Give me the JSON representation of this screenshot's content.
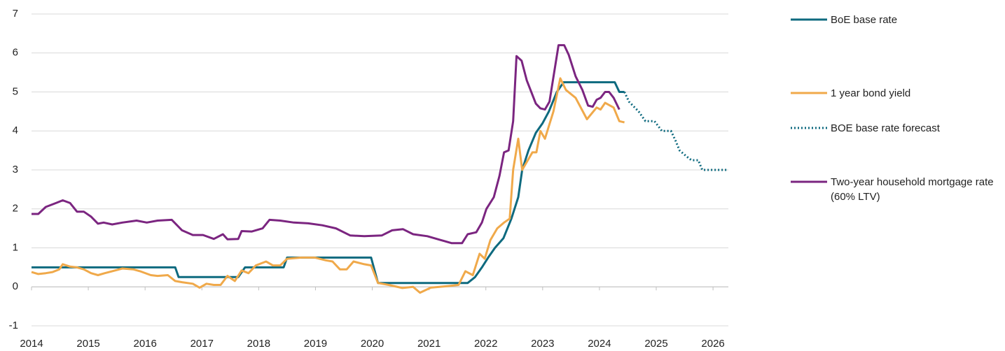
{
  "chart_data": {
    "type": "line",
    "xlim": [
      2014,
      2026.27
    ],
    "xticks": [
      2014,
      2015,
      2016,
      2017,
      2018,
      2019,
      2020,
      2021,
      2022,
      2023,
      2024,
      2025,
      2026
    ],
    "ylim": [
      -1,
      7
    ],
    "yticks": [
      -1,
      0,
      1,
      2,
      3,
      4,
      5,
      6,
      7
    ],
    "grid": true,
    "series": [
      {
        "name": "BoE base rate",
        "color": "#0e6a7f",
        "style": "solid",
        "x": [
          2014.0,
          2016.53,
          2016.59,
          2017.64,
          2017.76,
          2018.44,
          2018.5,
          2019.98,
          2020.1,
          2021.68,
          2021.81,
          2021.93,
          2022.04,
          2022.16,
          2022.31,
          2022.45,
          2022.57,
          2022.64,
          2022.75,
          2022.88,
          2023.0,
          2023.11,
          2023.25,
          2023.37,
          2024.27,
          2024.35,
          2024.44
        ],
        "values": [
          0.5,
          0.5,
          0.25,
          0.25,
          0.5,
          0.5,
          0.75,
          0.75,
          0.1,
          0.1,
          0.25,
          0.5,
          0.75,
          1.0,
          1.25,
          1.75,
          2.3,
          3.0,
          3.5,
          3.95,
          4.2,
          4.5,
          5.0,
          5.25,
          5.25,
          5.0,
          5.0
        ]
      },
      {
        "name": "1 year bond yield",
        "color": "#f0a94a",
        "style": "solid",
        "x": [
          2014.0,
          2014.12,
          2014.25,
          2014.37,
          2014.49,
          2014.55,
          2014.68,
          2014.8,
          2014.92,
          2015.05,
          2015.17,
          2015.29,
          2015.42,
          2015.6,
          2015.79,
          2015.91,
          2016.1,
          2016.22,
          2016.4,
          2016.53,
          2016.65,
          2016.84,
          2016.96,
          2017.08,
          2017.21,
          2017.33,
          2017.45,
          2017.58,
          2017.7,
          2017.82,
          2017.95,
          2018.13,
          2018.25,
          2018.38,
          2018.5,
          2018.75,
          2018.99,
          2019.18,
          2019.3,
          2019.43,
          2019.55,
          2019.67,
          2019.86,
          2019.98,
          2020.1,
          2020.29,
          2020.53,
          2020.72,
          2020.84,
          2021.03,
          2021.34,
          2021.52,
          2021.64,
          2021.77,
          2021.89,
          2021.98,
          2022.08,
          2022.2,
          2022.32,
          2022.42,
          2022.48,
          2022.57,
          2022.64,
          2022.82,
          2022.89,
          2022.96,
          2023.04,
          2023.19,
          2023.31,
          2023.41,
          2023.58,
          2023.78,
          2023.95,
          2024.02,
          2024.1,
          2024.25,
          2024.35,
          2024.44
        ],
        "values": [
          0.38,
          0.33,
          0.35,
          0.38,
          0.45,
          0.58,
          0.52,
          0.5,
          0.45,
          0.35,
          0.3,
          0.35,
          0.4,
          0.47,
          0.45,
          0.4,
          0.3,
          0.28,
          0.3,
          0.15,
          0.12,
          0.08,
          -0.02,
          0.08,
          0.05,
          0.05,
          0.28,
          0.15,
          0.42,
          0.35,
          0.55,
          0.65,
          0.55,
          0.55,
          0.72,
          0.75,
          0.75,
          0.68,
          0.65,
          0.45,
          0.45,
          0.65,
          0.58,
          0.55,
          0.1,
          0.05,
          -0.03,
          0,
          -0.15,
          -0.02,
          0.02,
          0.05,
          0.4,
          0.3,
          0.85,
          0.72,
          1.2,
          1.5,
          1.65,
          1.75,
          3.0,
          3.8,
          3.0,
          3.45,
          3.45,
          4.0,
          3.8,
          4.5,
          5.35,
          5.05,
          4.85,
          4.3,
          4.6,
          4.55,
          4.72,
          4.6,
          4.25,
          4.22
        ]
      },
      {
        "name": "BOE base rate forecast",
        "color": "#0e6a7f",
        "style": "dotted",
        "x": [
          2024.44,
          2024.52,
          2024.69,
          2024.81,
          2024.97,
          2025.1,
          2025.26,
          2025.34,
          2025.41,
          2025.53,
          2025.62,
          2025.74,
          2025.81,
          2026.27
        ],
        "values": [
          5.0,
          4.75,
          4.5,
          4.25,
          4.25,
          4.0,
          4.0,
          3.75,
          3.5,
          3.35,
          3.25,
          3.25,
          3.0,
          3.0
        ]
      },
      {
        "name": "Two-year household mortgage rate (60% LTV)",
        "color": "#7b2580",
        "style": "solid",
        "x": [
          2014.0,
          2014.12,
          2014.25,
          2014.43,
          2014.55,
          2014.68,
          2014.8,
          2014.92,
          2015.05,
          2015.17,
          2015.27,
          2015.42,
          2015.6,
          2015.85,
          2016.03,
          2016.22,
          2016.47,
          2016.65,
          2016.84,
          2017.02,
          2017.21,
          2017.37,
          2017.45,
          2017.64,
          2017.7,
          2017.88,
          2018.07,
          2018.19,
          2018.38,
          2018.62,
          2018.87,
          2019.12,
          2019.36,
          2019.61,
          2019.86,
          2020.17,
          2020.35,
          2020.54,
          2020.72,
          2020.97,
          2021.21,
          2021.4,
          2021.58,
          2021.68,
          2021.83,
          2021.93,
          2022.01,
          2022.14,
          2022.24,
          2022.32,
          2022.4,
          2022.48,
          2022.54,
          2022.63,
          2022.72,
          2022.88,
          2022.96,
          2023.04,
          2023.12,
          2023.28,
          2023.38,
          2023.46,
          2023.58,
          2023.7,
          2023.8,
          2023.88,
          2023.95,
          2024.02,
          2024.1,
          2024.17,
          2024.25,
          2024.35
        ],
        "values": [
          1.87,
          1.87,
          2.05,
          2.15,
          2.22,
          2.15,
          1.93,
          1.93,
          1.8,
          1.62,
          1.65,
          1.6,
          1.65,
          1.7,
          1.65,
          1.7,
          1.72,
          1.45,
          1.33,
          1.33,
          1.23,
          1.35,
          1.22,
          1.23,
          1.43,
          1.42,
          1.5,
          1.72,
          1.7,
          1.65,
          1.63,
          1.58,
          1.5,
          1.32,
          1.3,
          1.32,
          1.45,
          1.48,
          1.35,
          1.3,
          1.2,
          1.12,
          1.12,
          1.35,
          1.4,
          1.65,
          2.0,
          2.3,
          2.85,
          3.45,
          3.5,
          4.25,
          5.92,
          5.8,
          5.3,
          4.7,
          4.58,
          4.55,
          4.75,
          6.2,
          6.2,
          5.95,
          5.4,
          5.05,
          4.65,
          4.62,
          4.8,
          4.85,
          5.0,
          5.0,
          4.85,
          4.55
        ]
      }
    ]
  }
}
